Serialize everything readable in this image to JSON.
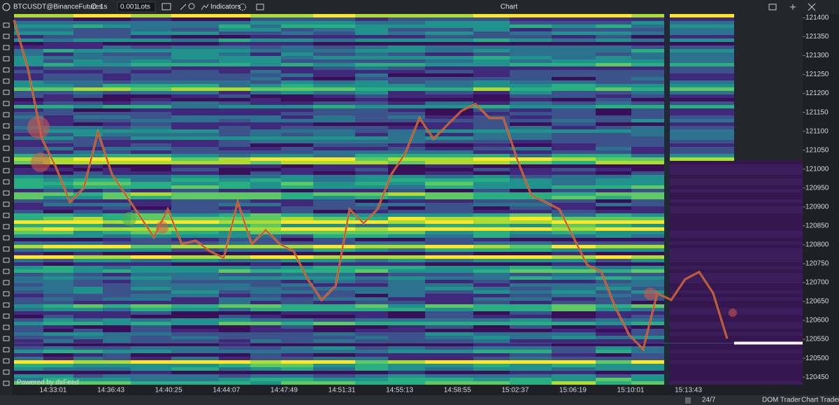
{
  "toolbar": {
    "symbol": "BTCUSDT@BinanceFutures",
    "interval": "1s",
    "quantity": "0.001",
    "quantity_unit": "Lots",
    "indicators": "Indicators",
    "title": "Chart"
  },
  "chart_data": {
    "type": "line",
    "x_tick_labels": [
      "14:33:01",
      "14:36:43",
      "14:40:25",
      "14:44:07",
      "14:47:49",
      "14:51:31",
      "14:55:13",
      "14:58:55",
      "15:02:37",
      "15:06:19",
      "15:10:01",
      "15:13:43"
    ],
    "ylim": [
      120430,
      121410
    ],
    "yticks": [
      121400,
      121350,
      121300,
      121250,
      121200,
      121150,
      121100,
      121050,
      121000,
      120950,
      120900,
      120850,
      120800,
      120750,
      120700,
      120650,
      120600,
      120550,
      120500,
      120450
    ],
    "series": [
      {
        "name": "BTCUSDT",
        "color": "#e8412c",
        "values": [
          121394,
          121265,
          121080,
          121005,
          120913,
          120950,
          121098,
          120987,
          120931,
          120876,
          120820,
          120894,
          120802,
          120811,
          120783,
          120765,
          120913,
          120802,
          120839,
          120802,
          120783,
          120709,
          120654,
          120691,
          120894,
          120857,
          120894,
          120987,
          121043,
          121135,
          121080,
          121117,
          121154,
          121172,
          121135,
          121135,
          121024,
          120931,
          120913,
          120894,
          120820,
          120746,
          120728,
          120635,
          120561,
          120524,
          120672,
          120654,
          120709,
          120728,
          120672,
          120552
        ]
      }
    ],
    "last_price": 120540.1
  },
  "footer": {
    "powered_by": "Powered by dxFeed"
  },
  "bottom_bar": {
    "session": "24/7",
    "dom_trader": "DOM Trader",
    "chart_trader": "Chart Trader"
  }
}
